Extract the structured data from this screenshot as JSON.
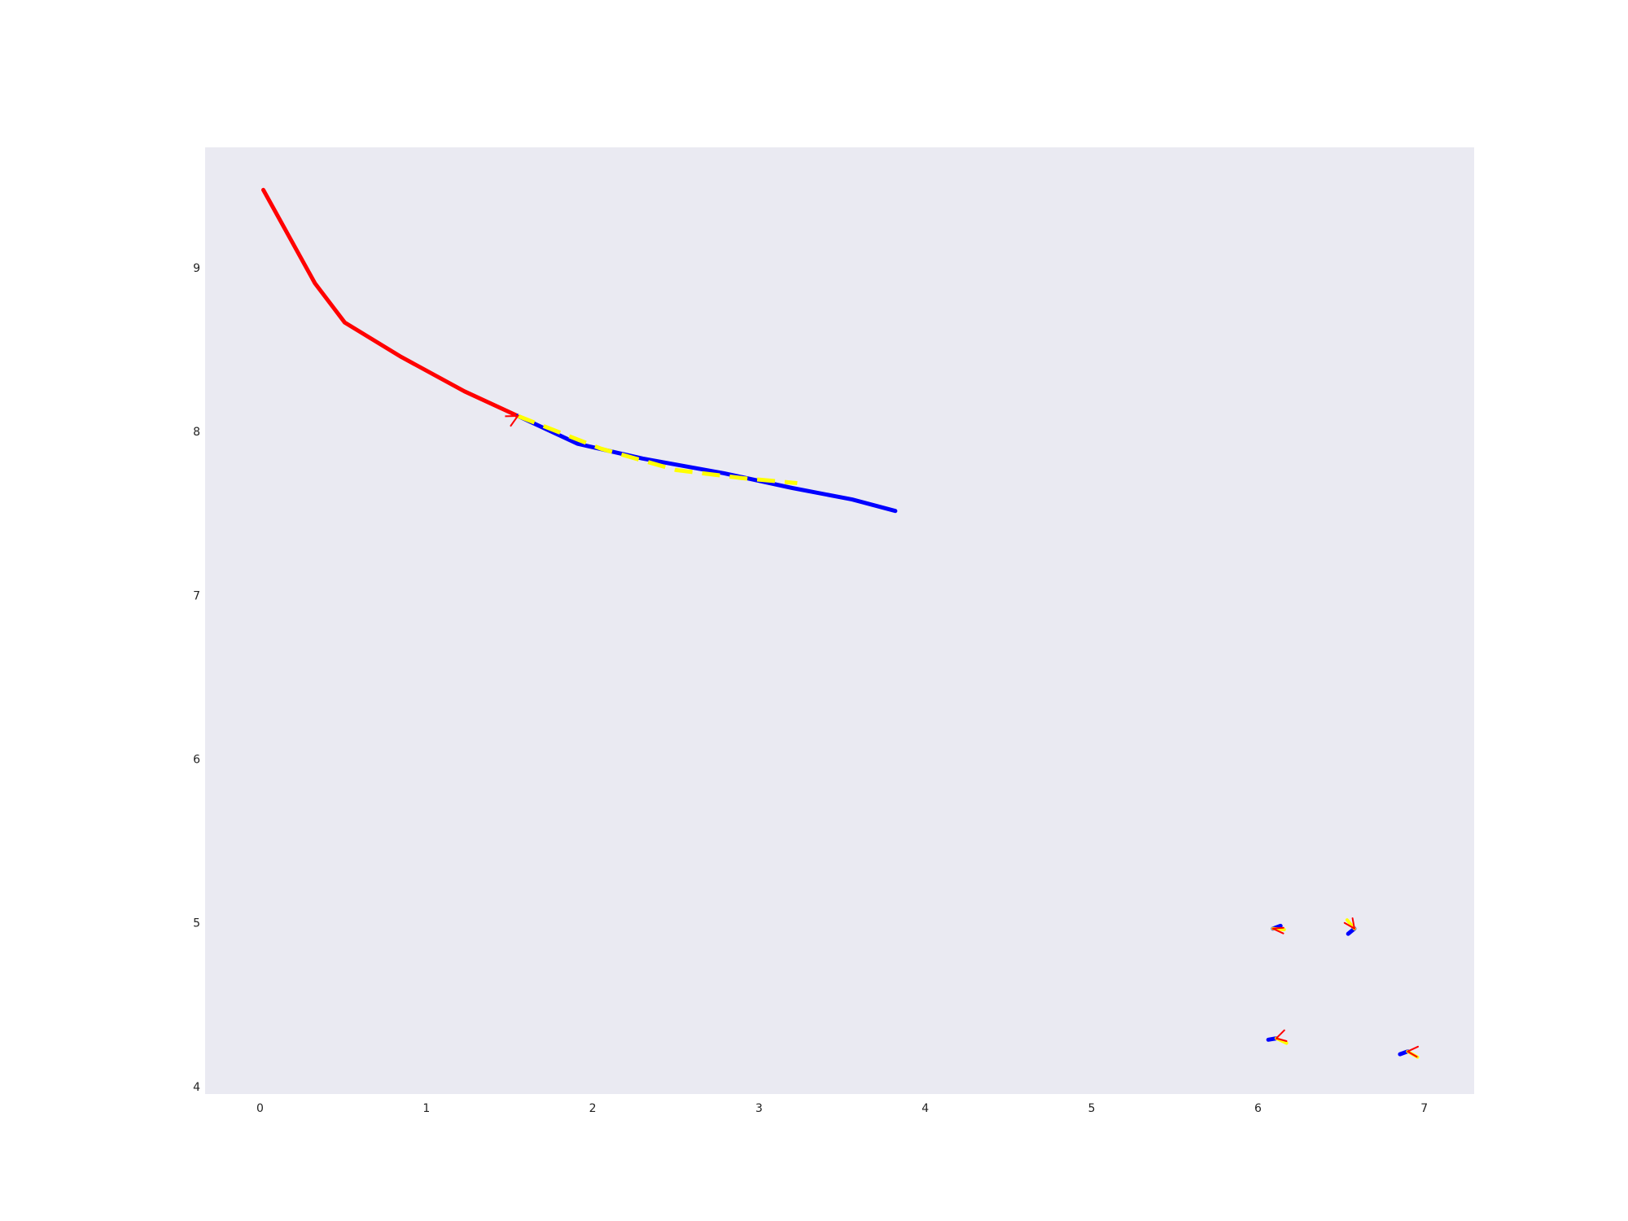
{
  "chart_data": {
    "type": "line",
    "title": "",
    "xlabel": "",
    "ylabel": "",
    "xlim": [
      -0.33,
      7.3
    ],
    "ylim": [
      3.96,
      9.74
    ],
    "grid": false,
    "background": "#eaeaf2",
    "x_ticks": [
      0,
      1,
      2,
      3,
      4,
      5,
      6,
      7
    ],
    "y_ticks": [
      4,
      5,
      6,
      7,
      8,
      9
    ],
    "series": [
      {
        "color": "#ff0000",
        "style": "solid",
        "x": [
          0.02,
          0.33,
          0.51,
          0.85,
          1.23,
          1.55
        ],
        "y": [
          9.48,
          8.91,
          8.67,
          8.46,
          8.25,
          8.1
        ]
      },
      {
        "color": "#0000ff",
        "style": "solid",
        "x": [
          1.55,
          1.91,
          2.3,
          2.79,
          3.2,
          3.56,
          3.82
        ],
        "y": [
          8.1,
          7.93,
          7.84,
          7.75,
          7.66,
          7.59,
          7.52
        ]
      },
      {
        "color": "#ffff00",
        "style": "dashed",
        "x": [
          1.55,
          2.05,
          2.5,
          2.9,
          3.23
        ],
        "y": [
          8.1,
          7.9,
          7.77,
          7.72,
          7.69
        ]
      }
    ],
    "arrow": {
      "color": "#ff0000",
      "x": 1.55,
      "y": 8.1,
      "angle_deg": -28
    },
    "glyphs": [
      {
        "x": 6.09,
        "y": 4.97,
        "blue": 20,
        "yellow": -5,
        "red1": -25,
        "red2": 5
      },
      {
        "x": 6.58,
        "y": 4.97,
        "blue": 220,
        "yellow": 130,
        "red1": 150,
        "red2": 100
      },
      {
        "x": 6.11,
        "y": 4.3,
        "blue": 190,
        "yellow": -25,
        "red1": 45,
        "red2": -15
      },
      {
        "x": 6.9,
        "y": 4.22,
        "blue": 200,
        "yellow": -30,
        "red1": 25,
        "red2": -30
      }
    ]
  }
}
